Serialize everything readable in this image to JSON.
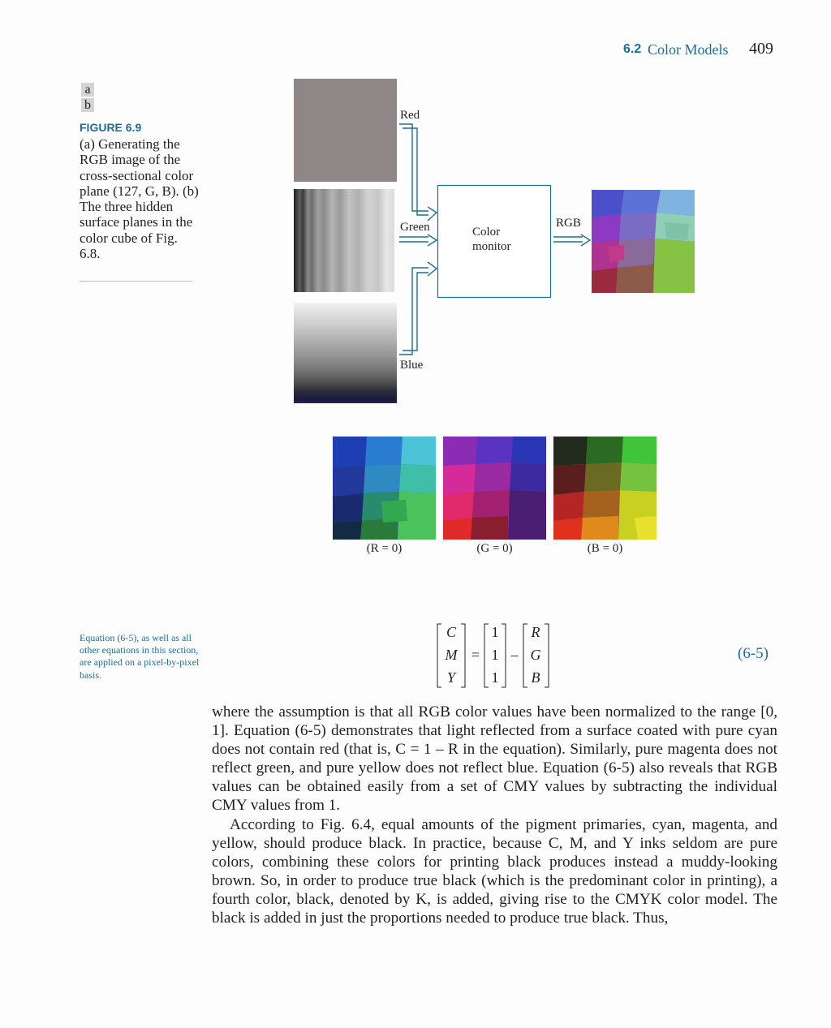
{
  "header": {
    "section_number": "6.2",
    "section_title": "Color Models",
    "page_number": "409"
  },
  "figure": {
    "panel_tags": [
      "a",
      "b"
    ],
    "label": "FIGURE 6.9",
    "caption": "(a) Generating the RGB image of the cross-sectional color plane (127, G, B). (b) The three hidden surface planes in the color cube of Fig. 6.8.",
    "diagram": {
      "inputs": [
        "Red",
        "Green",
        "Blue"
      ],
      "block": "Color monitor",
      "output": "RGB"
    },
    "subfigures": [
      "(R = 0)",
      "(G = 0)",
      "(B = 0)"
    ]
  },
  "margin_note": "Equation (6-5), as well as all other equations in this section, are applied on a pixel-by-pixel basis.",
  "equation": {
    "lhs": [
      "C",
      "M",
      "Y"
    ],
    "ones": [
      "1",
      "1",
      "1"
    ],
    "rhs": [
      "R",
      "G",
      "B"
    ],
    "equals": "=",
    "minus": "–",
    "number": "(6-5)"
  },
  "body": {
    "p1": "where the assumption is that all RGB color values have been normalized to the range [0, 1]. Equation (6-5) demonstrates that light reflected from a surface coated with pure cyan does not contain red (that is, C = 1 – R in the equation). Similarly, pure magenta does not reflect green, and pure yellow does not reflect blue. Equation (6-5) also reveals that RGB values can be obtained easily from a set of CMY values by subtracting the individual CMY values from 1.",
    "p2": "According to Fig. 6.4, equal amounts of the pigment primaries, cyan, magenta, and yellow, should produce black. In practice, because C, M, and Y inks seldom are pure colors, combining these colors for printing black produces instead a muddy-looking brown. So, in order to produce true black (which is the predominant color in printing), a fourth color, black, denoted by K, is added, giving rise to the CMYK color model. The black is added in just the proportions needed to produce true black. Thus,"
  }
}
